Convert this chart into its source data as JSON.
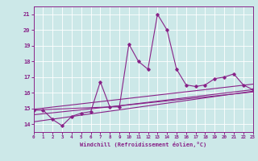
{
  "xlabel": "Windchill (Refroidissement éolien,°C)",
  "bg_color": "#cce8e8",
  "grid_color": "#ffffff",
  "line_color": "#882288",
  "xmin": 0,
  "xmax": 23,
  "ymin": 13.5,
  "ymax": 21.5,
  "yticks": [
    14,
    15,
    16,
    17,
    18,
    19,
    20,
    21
  ],
  "xticks": [
    0,
    1,
    2,
    3,
    4,
    5,
    6,
    7,
    8,
    9,
    10,
    11,
    12,
    13,
    14,
    15,
    16,
    17,
    18,
    19,
    20,
    21,
    22,
    23
  ],
  "series1_x": [
    0,
    1,
    2,
    3,
    4,
    5,
    6,
    7,
    8,
    9,
    10,
    11,
    12,
    13,
    14,
    15,
    16,
    17,
    18,
    19,
    20,
    21,
    22,
    23
  ],
  "series1_y": [
    14.9,
    14.9,
    14.3,
    13.9,
    14.5,
    14.7,
    14.8,
    16.7,
    15.1,
    15.1,
    19.1,
    18.0,
    17.5,
    21.0,
    20.0,
    17.5,
    16.5,
    16.4,
    16.5,
    16.9,
    17.0,
    17.2,
    16.5,
    16.2
  ],
  "series2_x": [
    0,
    8,
    23
  ],
  "series2_y": [
    14.9,
    15.1,
    16.2
  ],
  "series3_x": [
    0,
    23
  ],
  "series3_y": [
    14.95,
    16.55
  ],
  "series4_x": [
    0,
    23
  ],
  "series4_y": [
    14.6,
    16.05
  ],
  "series5_x": [
    0,
    23
  ],
  "series5_y": [
    14.15,
    16.1
  ]
}
